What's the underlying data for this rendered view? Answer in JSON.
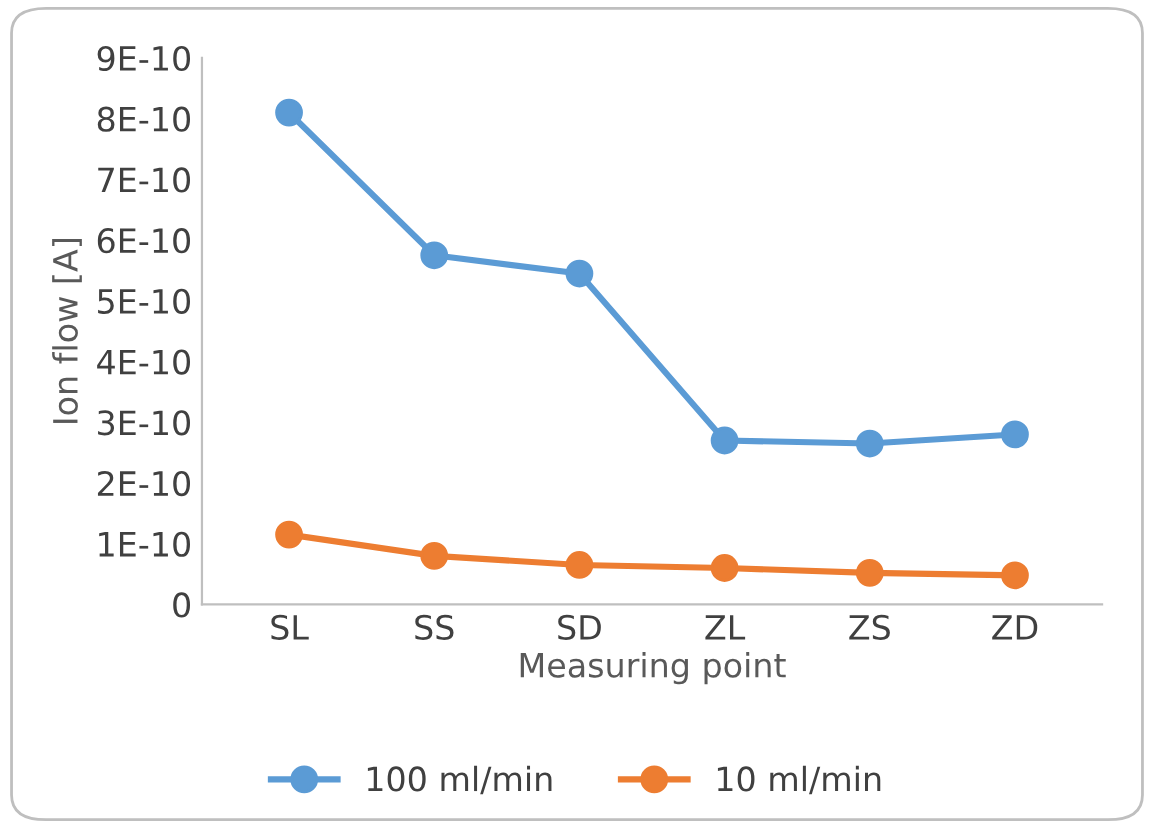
{
  "chart_data": {
    "type": "line",
    "xlabel": "Measuring point",
    "ylabel": "Ion flow [A]",
    "categories": [
      "SL",
      "SS",
      "SD",
      "ZL",
      "ZS",
      "ZD"
    ],
    "series": [
      {
        "name": "100 ml/min",
        "color": "#5b9bd5",
        "values": [
          8.1e-10,
          5.75e-10,
          5.45e-10,
          2.7e-10,
          2.65e-10,
          2.8e-10
        ]
      },
      {
        "name": "10 ml/min",
        "color": "#ed7d31",
        "values": [
          1.15e-10,
          8e-11,
          6.5e-11,
          6e-11,
          5.2e-11,
          4.8e-11
        ]
      }
    ],
    "ylim": [
      0,
      9e-10
    ],
    "yticks": [
      {
        "value": 0,
        "label": "0"
      },
      {
        "value": 1e-10,
        "label": "1E-10"
      },
      {
        "value": 2e-10,
        "label": "2E-10"
      },
      {
        "value": 3e-10,
        "label": "3E-10"
      },
      {
        "value": 4e-10,
        "label": "4E-10"
      },
      {
        "value": 5e-10,
        "label": "5E-10"
      },
      {
        "value": 6e-10,
        "label": "6E-10"
      },
      {
        "value": 7e-10,
        "label": "7E-10"
      },
      {
        "value": 8e-10,
        "label": "8E-10"
      },
      {
        "value": 9e-10,
        "label": "9E-10"
      }
    ],
    "marker": "circle",
    "line_style": "solid",
    "legend": "bottom",
    "grid": false
  }
}
